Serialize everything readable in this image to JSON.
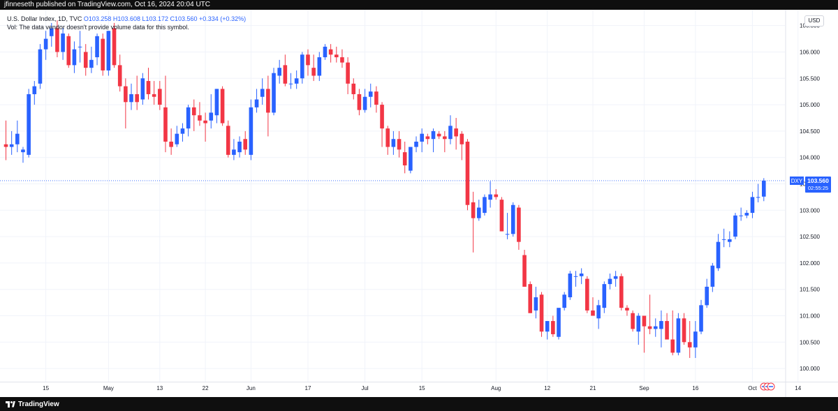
{
  "header": {
    "text": "jfinneseth published on TradingView.com, Oct 16, 2024 20:04 UTC"
  },
  "legend": {
    "symbol": "U.S. Dollar Index, 1D, TVC",
    "ohlc": "O103.258 H103.608 L103.172 C103.560 +0.334 (+0.32%)",
    "vol_note": "Vol: The data vendor doesn't provide volume data for this symbol."
  },
  "currency": "USD",
  "branding": {
    "logo_text": "TradingView"
  },
  "colors": {
    "up": "#2962ff",
    "down": "#f23645",
    "grid": "#f0f3fa",
    "last_price": "#2962ff"
  },
  "chart_data": {
    "type": "candlestick",
    "symbol_tag": "DXY",
    "last_price": {
      "value": "103.560",
      "countdown": "02:55:25",
      "level": 103.56
    },
    "y_range": [
      99.75,
      106.8
    ],
    "y_ticks": [
      "106.500",
      "106.000",
      "105.500",
      "105.000",
      "104.500",
      "104.000",
      "103.500",
      "103.000",
      "102.500",
      "102.000",
      "101.500",
      "101.000",
      "100.500",
      "100.000"
    ],
    "x_tick_labels": [
      "15",
      "May",
      "13",
      "22",
      "Jun",
      "17",
      "Jul",
      "15",
      "Aug",
      "12",
      "21",
      "Sep",
      "16",
      "Oct",
      "14",
      "2"
    ],
    "x_tick_candle_index": [
      7,
      18,
      27,
      35,
      43,
      53,
      63,
      73,
      86,
      95,
      103,
      112,
      121,
      131,
      139,
      150
    ],
    "ohlc": [
      [
        104.25,
        104.7,
        103.95,
        104.2
      ],
      [
        104.2,
        104.5,
        104.05,
        104.25
      ],
      [
        104.25,
        104.7,
        104.1,
        104.45
      ],
      [
        104.1,
        104.2,
        103.9,
        104.15
      ],
      [
        104.05,
        105.3,
        104.0,
        105.2
      ],
      [
        105.2,
        105.45,
        105.0,
        105.35
      ],
      [
        105.4,
        106.15,
        105.3,
        106.05
      ],
      [
        106.05,
        106.4,
        105.85,
        106.25
      ],
      [
        106.3,
        106.55,
        106.1,
        106.45
      ],
      [
        106.45,
        106.6,
        105.9,
        106.0
      ],
      [
        106.0,
        106.45,
        105.85,
        106.35
      ],
      [
        106.3,
        106.35,
        105.7,
        105.75
      ],
      [
        105.75,
        106.2,
        105.6,
        106.05
      ],
      [
        106.1,
        106.4,
        105.8,
        106.1
      ],
      [
        106.0,
        106.15,
        105.55,
        105.7
      ],
      [
        105.7,
        106.1,
        105.6,
        105.85
      ],
      [
        105.9,
        106.35,
        105.75,
        106.3
      ],
      [
        106.25,
        106.35,
        105.55,
        105.65
      ],
      [
        105.65,
        106.4,
        105.55,
        106.4
      ],
      [
        106.45,
        106.55,
        105.7,
        105.75
      ],
      [
        105.75,
        105.95,
        105.25,
        105.35
      ],
      [
        105.35,
        105.5,
        104.55,
        105.05
      ],
      [
        105.05,
        105.4,
        104.9,
        105.2
      ],
      [
        105.2,
        105.55,
        104.9,
        105.05
      ],
      [
        105.1,
        105.6,
        105.0,
        105.5
      ],
      [
        105.45,
        105.7,
        105.1,
        105.2
      ],
      [
        105.2,
        105.45,
        105.0,
        105.15
      ],
      [
        105.3,
        105.45,
        104.9,
        105.0
      ],
      [
        104.95,
        105.55,
        104.1,
        104.3
      ],
      [
        104.3,
        104.55,
        104.05,
        104.2
      ],
      [
        104.25,
        104.6,
        104.2,
        104.45
      ],
      [
        104.45,
        104.65,
        104.3,
        104.55
      ],
      [
        104.55,
        105.0,
        104.4,
        104.95
      ],
      [
        104.95,
        105.1,
        104.5,
        104.8
      ],
      [
        104.8,
        105.05,
        104.6,
        104.7
      ],
      [
        104.7,
        104.85,
        104.3,
        104.65
      ],
      [
        104.7,
        105.2,
        104.55,
        104.85
      ],
      [
        104.8,
        105.3,
        104.65,
        105.3
      ],
      [
        105.3,
        105.35,
        104.6,
        104.65
      ],
      [
        104.6,
        104.7,
        104.0,
        104.05
      ],
      [
        104.05,
        104.35,
        103.95,
        104.15
      ],
      [
        104.1,
        104.4,
        104.0,
        104.3
      ],
      [
        104.35,
        104.5,
        104.05,
        104.15
      ],
      [
        104.05,
        105.1,
        103.95,
        104.95
      ],
      [
        104.95,
        105.3,
        104.85,
        105.1
      ],
      [
        105.15,
        105.5,
        105.0,
        105.3
      ],
      [
        105.3,
        105.55,
        104.4,
        104.85
      ],
      [
        104.85,
        105.7,
        104.8,
        105.6
      ],
      [
        105.55,
        105.85,
        105.4,
        105.7
      ],
      [
        105.75,
        105.95,
        105.35,
        105.4
      ],
      [
        105.4,
        105.6,
        105.3,
        105.4
      ],
      [
        105.4,
        105.65,
        105.3,
        105.5
      ],
      [
        105.5,
        106.0,
        105.4,
        105.95
      ],
      [
        105.95,
        106.05,
        105.55,
        105.75
      ],
      [
        105.7,
        105.95,
        105.45,
        105.55
      ],
      [
        105.55,
        106.0,
        105.45,
        105.9
      ],
      [
        105.9,
        106.15,
        105.85,
        106.1
      ],
      [
        106.05,
        106.15,
        105.8,
        105.95
      ],
      [
        105.95,
        106.1,
        105.8,
        105.9
      ],
      [
        105.9,
        106.05,
        105.7,
        105.8
      ],
      [
        105.8,
        105.9,
        105.2,
        105.4
      ],
      [
        105.4,
        105.5,
        105.1,
        105.2
      ],
      [
        105.2,
        105.3,
        104.8,
        104.9
      ],
      [
        104.9,
        105.3,
        104.85,
        105.15
      ],
      [
        105.15,
        105.4,
        104.95,
        105.25
      ],
      [
        105.25,
        105.35,
        104.85,
        105.0
      ],
      [
        105.0,
        105.05,
        104.2,
        104.55
      ],
      [
        104.55,
        104.6,
        104.05,
        104.2
      ],
      [
        104.2,
        104.5,
        104.05,
        104.35
      ],
      [
        104.35,
        104.5,
        104.0,
        104.15
      ],
      [
        104.1,
        104.3,
        103.7,
        103.85
      ],
      [
        103.75,
        104.2,
        103.7,
        104.2
      ],
      [
        104.2,
        104.4,
        104.1,
        104.3
      ],
      [
        104.3,
        104.55,
        104.1,
        104.45
      ],
      [
        104.4,
        104.45,
        104.25,
        104.35
      ],
      [
        104.35,
        104.55,
        104.1,
        104.5
      ],
      [
        104.45,
        104.5,
        104.35,
        104.4
      ],
      [
        104.4,
        104.5,
        104.1,
        104.35
      ],
      [
        104.35,
        104.8,
        104.25,
        104.6
      ],
      [
        104.55,
        104.75,
        104.15,
        104.4
      ],
      [
        104.45,
        104.5,
        103.95,
        104.25
      ],
      [
        104.3,
        104.35,
        103.0,
        103.1
      ],
      [
        103.15,
        103.35,
        102.2,
        102.85
      ],
      [
        102.85,
        103.2,
        102.8,
        103.05
      ],
      [
        102.95,
        103.3,
        102.9,
        103.25
      ],
      [
        103.2,
        103.55,
        103.05,
        103.3
      ],
      [
        103.3,
        103.4,
        103.2,
        103.25
      ],
      [
        103.2,
        103.25,
        102.6,
        102.6
      ],
      [
        102.55,
        102.95,
        102.45,
        102.55
      ],
      [
        102.55,
        103.15,
        102.5,
        103.1
      ],
      [
        103.05,
        103.1,
        102.25,
        102.4
      ],
      [
        102.15,
        102.25,
        101.55,
        101.55
      ],
      [
        101.6,
        101.65,
        101.05,
        101.05
      ],
      [
        101.1,
        101.55,
        100.95,
        101.35
      ],
      [
        101.4,
        101.45,
        100.6,
        100.7
      ],
      [
        100.7,
        100.85,
        100.55,
        100.9
      ],
      [
        100.9,
        101.0,
        100.6,
        100.65
      ],
      [
        100.6,
        101.1,
        100.55,
        101.15
      ],
      [
        101.15,
        101.45,
        101.1,
        101.4
      ],
      [
        101.35,
        101.85,
        101.3,
        101.8
      ],
      [
        101.75,
        101.85,
        101.55,
        101.75
      ],
      [
        101.75,
        101.9,
        101.6,
        101.8
      ],
      [
        101.7,
        101.75,
        101.05,
        101.1
      ],
      [
        101.1,
        101.35,
        101.0,
        101.0
      ],
      [
        100.95,
        101.3,
        100.75,
        101.2
      ],
      [
        101.15,
        101.65,
        101.05,
        101.6
      ],
      [
        101.6,
        101.8,
        101.5,
        101.7
      ],
      [
        101.7,
        101.85,
        101.55,
        101.75
      ],
      [
        101.75,
        101.8,
        101.1,
        101.15
      ],
      [
        101.15,
        101.2,
        101.0,
        101.1
      ],
      [
        101.05,
        101.1,
        100.7,
        100.75
      ],
      [
        100.7,
        101.05,
        100.45,
        101.0
      ],
      [
        101.0,
        101.0,
        100.3,
        100.8
      ],
      [
        100.8,
        101.4,
        100.65,
        100.75
      ],
      [
        100.75,
        100.95,
        100.6,
        100.8
      ],
      [
        100.75,
        101.1,
        100.4,
        100.9
      ],
      [
        100.9,
        101.05,
        100.55,
        100.55
      ],
      [
        100.55,
        101.1,
        100.25,
        100.3
      ],
      [
        100.3,
        101.05,
        100.25,
        100.95
      ],
      [
        100.95,
        101.05,
        100.45,
        100.5
      ],
      [
        100.5,
        100.9,
        100.2,
        100.4
      ],
      [
        100.4,
        100.9,
        100.2,
        100.7
      ],
      [
        100.7,
        101.3,
        100.65,
        101.2
      ],
      [
        101.2,
        101.7,
        101.15,
        101.55
      ],
      [
        101.55,
        102.0,
        101.45,
        101.95
      ],
      [
        101.9,
        102.55,
        101.85,
        102.4
      ],
      [
        102.45,
        102.65,
        102.3,
        102.45
      ],
      [
        102.4,
        102.6,
        102.3,
        102.45
      ],
      [
        102.5,
        102.95,
        102.45,
        102.9
      ],
      [
        102.9,
        103.05,
        102.8,
        102.9
      ],
      [
        102.9,
        103.0,
        102.85,
        102.95
      ],
      [
        102.95,
        103.35,
        102.85,
        103.25
      ],
      [
        103.25,
        103.5,
        103.15,
        103.25
      ],
      [
        103.258,
        103.608,
        103.172,
        103.56
      ]
    ]
  }
}
